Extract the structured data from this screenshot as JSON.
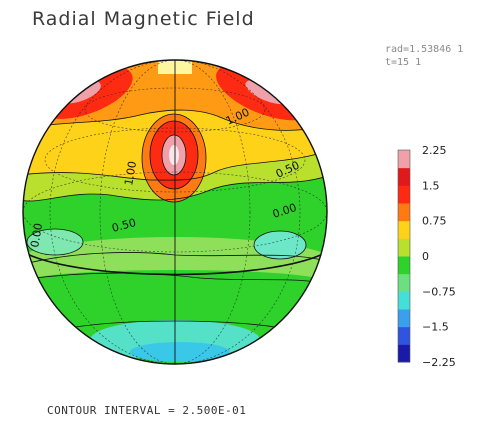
{
  "header": {
    "title": "Radial Magnetic Field"
  },
  "meta": {
    "rad_line": "rad=1.53846 1",
    "t_line": "t=15 1"
  },
  "footer": {
    "contour_interval": "CONTOUR INTERVAL = 2.500E-01"
  },
  "chart_data": {
    "type": "heatmap",
    "title": "Radial Magnetic Field",
    "projection": "orthographic sphere",
    "colorbar": {
      "range": [
        -2.25,
        2.25
      ],
      "ticks": [
        2.25,
        1.5,
        0.75,
        0,
        -0.75,
        -1.5,
        -2.25
      ],
      "tick_labels": [
        "2.25",
        "1.5",
        "0.75",
        "0",
        "−0.75",
        "−1.5",
        "−2.25"
      ],
      "colors": [
        "#1a1aa8",
        "#2f55e0",
        "#3aa0ee",
        "#44e0d8",
        "#6ce080",
        "#2ed22a",
        "#b8e02c",
        "#ffd21a",
        "#ff7a12",
        "#ff2a12",
        "#e01a1a",
        "#f0a0a8"
      ]
    },
    "contour_interval": 0.25,
    "contour_labels": [
      "1.00",
      "1.00",
      "0.50",
      "0.00",
      "0.50",
      "0.00"
    ]
  }
}
